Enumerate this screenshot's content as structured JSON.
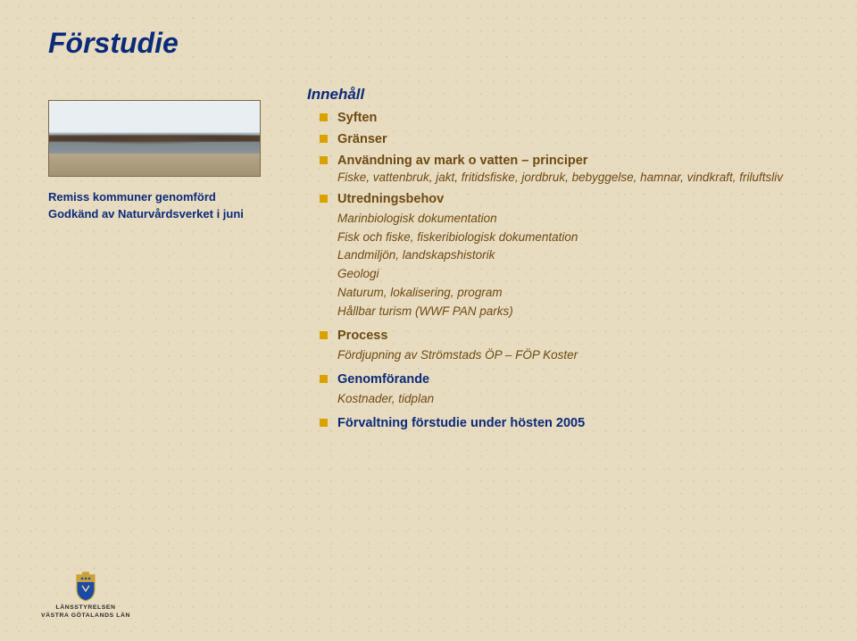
{
  "colors": {
    "title": "#0a2a7a",
    "caption": "#0a2a7a",
    "section_head": "#0a2a7a",
    "bullet_fill": "#d9a200",
    "item_brown": "#6e4a12",
    "sub_brown": "#6e4a12",
    "background": "#e8dcc0"
  },
  "title": "Förstudie",
  "caption_lines": [
    "Remiss kommuner genomförd",
    "Godkänd av Naturvårdsverket i juni"
  ],
  "content": {
    "heading": "Innehåll",
    "items": [
      {
        "label": "Syften",
        "color_key": "item_brown"
      },
      {
        "label": "Gränser",
        "color_key": "item_brown"
      },
      {
        "label": "Användning av mark o vatten – principer",
        "color_key": "item_brown",
        "desc": "Fiske, vattenbruk, jakt, fritidsfiske, jordbruk, bebyggelse, hamnar, vindkraft, friluftsliv"
      },
      {
        "label": "Utredningsbehov",
        "color_key": "item_brown",
        "sub": [
          "Marinbiologisk dokumentation",
          "Fisk och fiske, fiskeribiologisk dokumentation",
          "Landmiljön, landskapshistorik",
          "Geologi",
          "Naturum, lokalisering, program",
          "Hållbar turism (WWF PAN parks)"
        ]
      },
      {
        "label": "Process",
        "color_key": "item_brown",
        "sub": [
          "Fördjupning av Strömstads ÖP – FÖP Koster"
        ]
      },
      {
        "label": "Genomförande",
        "color_key": "section_head",
        "sub": [
          "Kostnader, tidplan"
        ]
      },
      {
        "label": "Förvaltning förstudie under hösten 2005",
        "color_key": "section_head"
      }
    ]
  },
  "footer": {
    "line1": "LÄNSSTYRELSEN",
    "line2": "VÄSTRA GÖTALANDS LÄN"
  }
}
